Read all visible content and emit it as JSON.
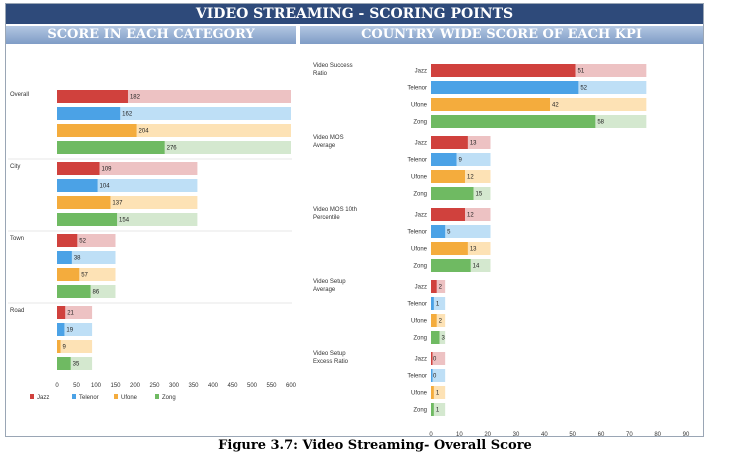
{
  "header": {
    "title": "VIDEO STREAMING - SCORING POINTS",
    "left_subtitle": "SCORE IN EACH CATEGORY",
    "right_subtitle": "COUNTRY WIDE SCORE OF EACH KPI"
  },
  "caption": "Figure 3.7: Video Streaming- Overall Score",
  "colors": {
    "Jazz": {
      "dark": "#d0413d",
      "light": "#edc2c3"
    },
    "Telenor": {
      "dark": "#4ba2e6",
      "light": "#bedff6"
    },
    "Ufone": {
      "dark": "#f4ac3d",
      "light": "#fde2b5"
    },
    "Zong": {
      "dark": "#6fba62",
      "light": "#d4e8cf"
    }
  },
  "chart_data": [
    {
      "type": "bar",
      "orientation": "horizontal",
      "title": "SCORE IN EACH CATEGORY",
      "operators": [
        "Jazz",
        "Telenor",
        "Ufone",
        "Zong"
      ],
      "xlim": [
        0,
        600
      ],
      "xticks": [
        0,
        50,
        100,
        150,
        200,
        250,
        300,
        350,
        400,
        450,
        500,
        550,
        600
      ],
      "legend": "bottom",
      "groups": [
        {
          "label": "Overall",
          "max": 600,
          "values": [
            182,
            162,
            204,
            276
          ]
        },
        {
          "label": "City",
          "max": 360,
          "values": [
            109,
            104,
            137,
            154
          ]
        },
        {
          "label": "Town",
          "max": 150,
          "values": [
            52,
            38,
            57,
            86
          ]
        },
        {
          "label": "Road",
          "max": 90,
          "values": [
            21,
            19,
            9,
            35
          ]
        }
      ]
    },
    {
      "type": "bar",
      "orientation": "horizontal",
      "title": "COUNTRY WIDE SCORE OF EACH KPI",
      "operators": [
        "Jazz",
        "Telenor",
        "Ufone",
        "Zong"
      ],
      "xlim": [
        0,
        90
      ],
      "xticks": [
        0,
        10,
        20,
        30,
        40,
        50,
        60,
        70,
        80,
        90
      ],
      "groups": [
        {
          "label": "Video Success Ratio",
          "max": 76,
          "values": [
            51,
            52,
            42,
            58
          ]
        },
        {
          "label": "Video MOS Average",
          "max": 21,
          "values": [
            13,
            9,
            12,
            15
          ]
        },
        {
          "label": "Video MOS 10th Percentile",
          "max": 21,
          "values": [
            12,
            5,
            13,
            14
          ]
        },
        {
          "label": "Video Setup Average",
          "max": 5,
          "values": [
            2,
            1,
            2,
            3
          ]
        },
        {
          "label": "Video Setup Excess Ratio",
          "max": 5,
          "values": [
            0,
            0,
            1,
            1
          ]
        }
      ]
    }
  ]
}
